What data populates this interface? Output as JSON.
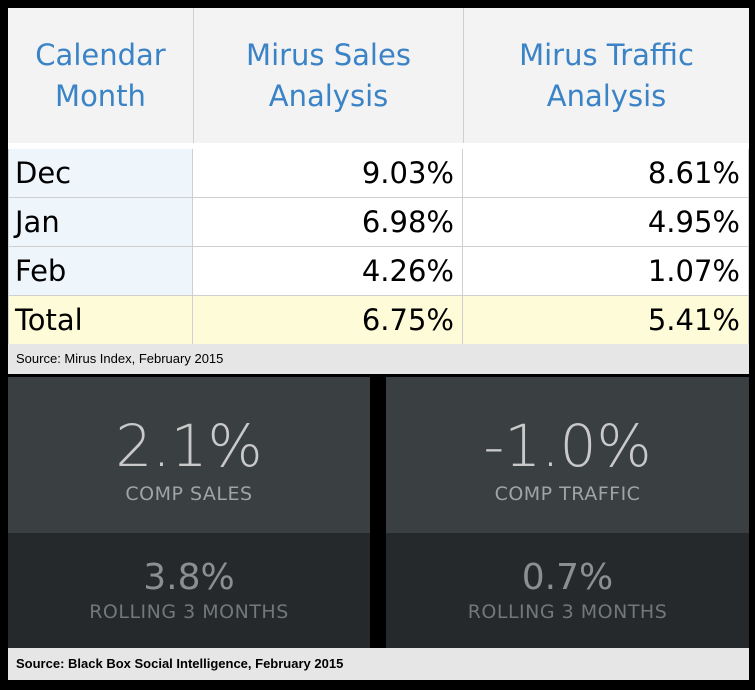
{
  "chart_data": [
    {
      "type": "table",
      "columns": [
        "Calendar Month",
        "Mirus Sales Analysis",
        "Mirus Traffic Analysis"
      ],
      "rows": [
        [
          "Dec",
          "9.03%",
          "8.61%"
        ],
        [
          "Jan",
          "6.98%",
          "4.95%"
        ],
        [
          "Feb",
          "4.26%",
          "1.07%"
        ],
        [
          "Total",
          "6.75%",
          "5.41%"
        ]
      ],
      "source": "Source:  Mirus Index, February 2015"
    },
    {
      "type": "table",
      "kpis": [
        {
          "value": "2.1%",
          "label": "COMP SALES",
          "rolling_value": "3.8%",
          "rolling_label": "ROLLING 3 MONTHS"
        },
        {
          "value": "-1.0%",
          "label": "COMP TRAFFIC",
          "rolling_value": "0.7%",
          "rolling_label": "ROLLING 3 MONTHS"
        }
      ],
      "source": "Source: Black Box Social Intelligence, February 2015"
    }
  ],
  "colors": {
    "header_text": "#3a83c6",
    "total_row": "#fdfbd8",
    "month_col": "#eef5fb",
    "kpi_dark": "#3a3f42",
    "kpi_darker": "#26292b"
  }
}
